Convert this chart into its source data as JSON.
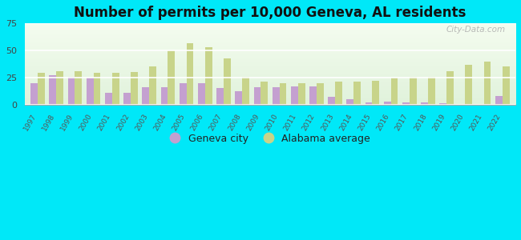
{
  "title": "Number of permits per 10,000 Geneva, AL residents",
  "years": [
    1997,
    1998,
    1999,
    2000,
    2001,
    2002,
    2003,
    2004,
    2005,
    2006,
    2007,
    2008,
    2009,
    2010,
    2011,
    2012,
    2013,
    2014,
    2015,
    2016,
    2017,
    2018,
    2019,
    2020,
    2021,
    2022
  ],
  "geneva_city": [
    20,
    27,
    26,
    25,
    11,
    11,
    16,
    16,
    20,
    20,
    15,
    12,
    16,
    16,
    17,
    17,
    7,
    5,
    2,
    3,
    2,
    2,
    1,
    0,
    0,
    8
  ],
  "alabama_avg": [
    29,
    31,
    31,
    29,
    29,
    30,
    35,
    50,
    57,
    53,
    43,
    26,
    21,
    20,
    20,
    20,
    21,
    21,
    22,
    25,
    26,
    26,
    31,
    37,
    40,
    35
  ],
  "city_color": "#c4a0d0",
  "avg_color": "#c8d48a",
  "background_outer": "#00e8f8",
  "ylim": [
    0,
    75
  ],
  "yticks": [
    0,
    25,
    50,
    75
  ],
  "title_fontsize": 12,
  "legend_city": "Geneva city",
  "legend_avg": "Alabama average",
  "watermark": "City-Data.com"
}
